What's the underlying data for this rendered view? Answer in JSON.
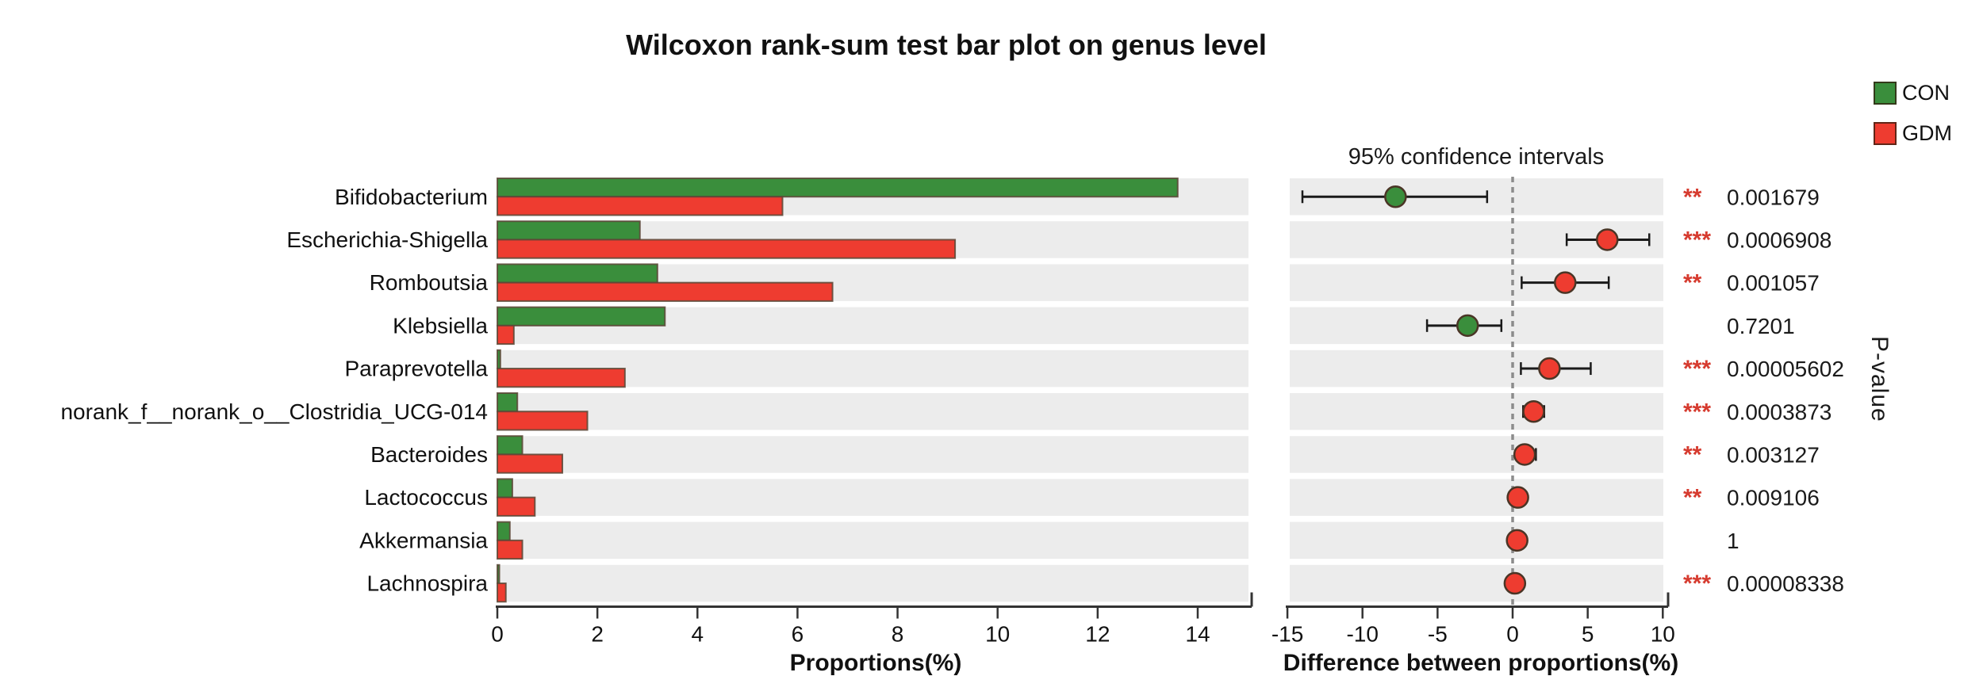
{
  "title": "Wilcoxon rank-sum test bar plot on genus level",
  "legend": {
    "items": [
      {
        "label": "CON",
        "color": "#3a8e3c"
      },
      {
        "label": "GDM",
        "color": "#ee3c30"
      }
    ]
  },
  "chart_data": {
    "type": "bar",
    "title": "Wilcoxon rank-sum test bar plot on genus level",
    "categories": [
      "Bifidobacterium",
      "Escherichia-Shigella",
      "Romboutsia",
      "Klebsiella",
      "Paraprevotella",
      "norank_f__norank_o__Clostridia_UCG-014",
      "Bacteroides",
      "Lactococcus",
      "Akkermansia",
      "Lachnospira"
    ],
    "series": [
      {
        "name": "CON",
        "color": "#3a8e3c",
        "values": [
          13.6,
          2.85,
          3.2,
          3.35,
          0.06,
          0.4,
          0.5,
          0.3,
          0.25,
          0.04
        ]
      },
      {
        "name": "GDM",
        "color": "#ee3c30",
        "values": [
          5.7,
          9.15,
          6.7,
          0.33,
          2.55,
          1.8,
          1.3,
          0.75,
          0.5,
          0.17
        ]
      }
    ],
    "left_panel": {
      "xlabel": "Proportions(%)",
      "xlim": [
        0,
        15
      ],
      "xticks": [
        0,
        2,
        4,
        6,
        8,
        10,
        12,
        14
      ]
    },
    "right_panel": {
      "title": "95% confidence intervals",
      "xlabel": "Difference between proportions(%)",
      "xlim": [
        -15.1,
        10.4
      ],
      "xticks": [
        -15,
        -10,
        -5,
        0,
        5,
        10
      ],
      "zero_line": true,
      "intervals": [
        {
          "mean": -7.8,
          "lo": -14.0,
          "hi": -1.7,
          "group": "CON"
        },
        {
          "mean": 6.3,
          "lo": 3.6,
          "hi": 9.1,
          "group": "GDM"
        },
        {
          "mean": 3.5,
          "lo": 0.6,
          "hi": 6.4,
          "group": "GDM"
        },
        {
          "mean": -3.0,
          "lo": -5.7,
          "hi": -0.75,
          "group": "CON"
        },
        {
          "mean": 2.45,
          "lo": 0.55,
          "hi": 5.2,
          "group": "GDM"
        },
        {
          "mean": 1.4,
          "lo": 0.7,
          "hi": 2.1,
          "group": "GDM"
        },
        {
          "mean": 0.8,
          "lo": 0.3,
          "hi": 1.55,
          "group": "GDM"
        },
        {
          "mean": 0.35,
          "lo": 0.05,
          "hi": 0.9,
          "group": "GDM"
        },
        {
          "mean": 0.3,
          "lo": -0.05,
          "hi": 0.85,
          "group": "GDM"
        },
        {
          "mean": 0.15,
          "lo": 0.0,
          "hi": 0.3,
          "group": "GDM"
        }
      ]
    },
    "p_values": [
      "0.001679",
      "0.0006908",
      "0.001057",
      "0.7201",
      "0.00005602",
      "0.0003873",
      "0.003127",
      "0.009106",
      "1",
      "0.00008338"
    ],
    "significance": [
      "**",
      "***",
      "**",
      "",
      "***",
      "***",
      "**",
      "**",
      "",
      "***"
    ],
    "pvalue_axis_label": "P-value",
    "colors": {
      "band": "#ececec",
      "bar_stroke": "#5b4636",
      "axis": "#333333",
      "error_bar": "#1a1a1a",
      "zero_dash": "#8c8c8c",
      "star": "#d63b2f",
      "text": "#1a1a1a"
    }
  }
}
